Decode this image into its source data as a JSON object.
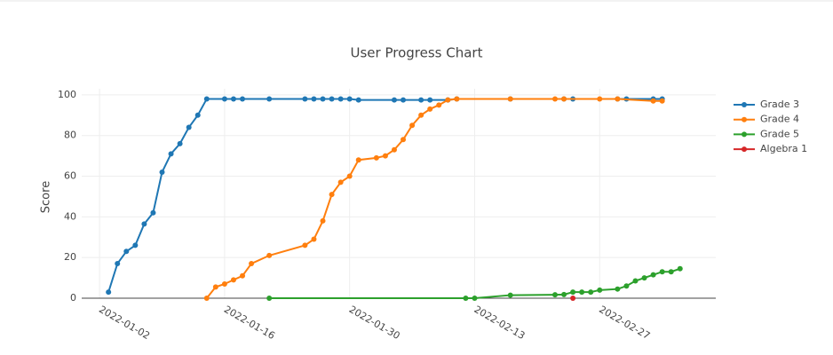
{
  "chart_data": {
    "type": "line",
    "title": "User Progress Chart",
    "y_label": "Score",
    "xlim": [
      "2021-12-31",
      "2022-03-12"
    ],
    "xticks": [
      "2022-01-02",
      "2022-01-16",
      "2022-01-30",
      "2022-02-13",
      "2022-02-27"
    ],
    "ylim": [
      0,
      103
    ],
    "yticks": [
      0,
      20,
      40,
      60,
      80,
      100
    ],
    "grid": true,
    "legend": "right",
    "series": [
      {
        "name": "Grade 3",
        "color": "#1f77b4",
        "x": [
          "2022-01-03",
          "2022-01-04",
          "2022-01-05",
          "2022-01-06",
          "2022-01-07",
          "2022-01-08",
          "2022-01-09",
          "2022-01-10",
          "2022-01-11",
          "2022-01-12",
          "2022-01-13",
          "2022-01-14",
          "2022-01-16",
          "2022-01-17",
          "2022-01-18",
          "2022-01-21",
          "2022-01-25",
          "2022-01-26",
          "2022-01-27",
          "2022-01-28",
          "2022-01-29",
          "2022-01-30",
          "2022-01-31",
          "2022-02-04",
          "2022-02-05",
          "2022-02-07",
          "2022-02-08",
          "2022-02-10",
          "2022-02-11",
          "2022-02-17",
          "2022-02-23",
          "2022-02-24",
          "2022-03-01",
          "2022-03-02",
          "2022-03-05",
          "2022-03-06"
        ],
        "values": [
          3,
          17,
          23,
          26,
          36.5,
          42,
          62,
          71,
          76,
          84,
          90,
          98,
          98,
          98,
          98,
          98,
          98,
          98,
          98,
          98,
          98,
          98,
          97.5,
          97.5,
          97.5,
          97.5,
          97.5,
          97.5,
          98,
          98,
          98,
          98,
          98,
          98,
          98,
          98
        ]
      },
      {
        "name": "Grade 4",
        "color": "#ff7f0e",
        "x": [
          "2022-01-14",
          "2022-01-15",
          "2022-01-16",
          "2022-01-17",
          "2022-01-18",
          "2022-01-19",
          "2022-01-21",
          "2022-01-25",
          "2022-01-26",
          "2022-01-27",
          "2022-01-28",
          "2022-01-29",
          "2022-01-30",
          "2022-01-31",
          "2022-02-02",
          "2022-02-03",
          "2022-02-04",
          "2022-02-05",
          "2022-02-06",
          "2022-02-07",
          "2022-02-08",
          "2022-02-09",
          "2022-02-10",
          "2022-02-11",
          "2022-02-17",
          "2022-02-22",
          "2022-02-23",
          "2022-02-27",
          "2022-03-01",
          "2022-03-05",
          "2022-03-06"
        ],
        "values": [
          0,
          5.5,
          7,
          9,
          11,
          17,
          21,
          26,
          29,
          38,
          51,
          57,
          60,
          68,
          69,
          70,
          73,
          78,
          85,
          90,
          93,
          95,
          97.5,
          98,
          98,
          98,
          98,
          98,
          98,
          97,
          97
        ]
      },
      {
        "name": "Grade 5",
        "color": "#2ca02c",
        "x": [
          "2022-01-21",
          "2022-02-12",
          "2022-02-13",
          "2022-02-17",
          "2022-02-22",
          "2022-02-23",
          "2022-02-24",
          "2022-02-25",
          "2022-02-26",
          "2022-02-27",
          "2022-03-01",
          "2022-03-02",
          "2022-03-03",
          "2022-03-04",
          "2022-03-05",
          "2022-03-06",
          "2022-03-07",
          "2022-03-08"
        ],
        "values": [
          0,
          0,
          0,
          1.5,
          1.7,
          1.8,
          3,
          3,
          3,
          4,
          4.5,
          6,
          8.5,
          10,
          11.5,
          13,
          13,
          14.5
        ]
      },
      {
        "name": "Algebra 1",
        "color": "#d62728",
        "x": [
          "2022-02-24"
        ],
        "values": [
          0
        ]
      }
    ]
  }
}
